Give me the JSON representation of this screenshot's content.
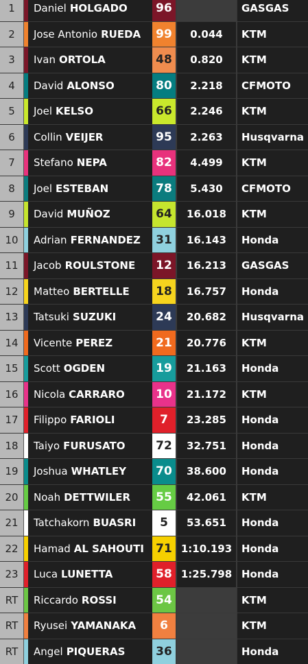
{
  "table": {
    "rows": [
      {
        "pos": "1",
        "first": "Daniel",
        "last": "HOLGADO",
        "number": "96",
        "gap": null,
        "team": "GASGAS",
        "color": "#7b1628",
        "strip": "#7b1628"
      },
      {
        "pos": "2",
        "first": "Jose Antonio",
        "last": "RUEDA",
        "number": "99",
        "gap": "0.044",
        "team": "KTM",
        "color": "#f0822e",
        "strip": "#f0822e"
      },
      {
        "pos": "3",
        "first": "Ivan",
        "last": "ORTOLA",
        "number": "48",
        "gap": "0.820",
        "team": "KTM",
        "color": "#ef8c4e",
        "strip": "#7b1628"
      },
      {
        "pos": "4",
        "first": "David",
        "last": "ALONSO",
        "number": "80",
        "gap": "2.218",
        "team": "CFMOTO",
        "color": "#057d80",
        "strip": "#057d80"
      },
      {
        "pos": "5",
        "first": "Joel",
        "last": "KELSO",
        "number": "66",
        "gap": "2.246",
        "team": "KTM",
        "color": "#c9e82c",
        "strip": "#c9e82c"
      },
      {
        "pos": "6",
        "first": "Collin",
        "last": "VEIJER",
        "number": "95",
        "gap": "2.263",
        "team": "Husqvarna",
        "color": "#2d3a56",
        "strip": "#2d3a56"
      },
      {
        "pos": "7",
        "first": "Stefano",
        "last": "NEPA",
        "number": "82",
        "gap": "4.499",
        "team": "KTM",
        "color": "#e8327c",
        "strip": "#e8327c"
      },
      {
        "pos": "8",
        "first": "Joel",
        "last": "ESTEBAN",
        "number": "78",
        "gap": "5.430",
        "team": "CFMOTO",
        "color": "#0b7c7e",
        "strip": "#0b7c7e"
      },
      {
        "pos": "9",
        "first": "David",
        "last": "MUÑOZ",
        "number": "64",
        "gap": "16.018",
        "team": "KTM",
        "color": "#c5e52e",
        "strip": "#c5e52e"
      },
      {
        "pos": "10",
        "first": "Adrian",
        "last": "FERNANDEZ",
        "number": "31",
        "gap": "16.143",
        "team": "Honda",
        "color": "#8fd0de",
        "strip": "#8fd0de"
      },
      {
        "pos": "11",
        "first": "Jacob",
        "last": "ROULSTONE",
        "number": "12",
        "gap": "16.213",
        "team": "GASGAS",
        "color": "#7b1628",
        "strip": "#7b1628"
      },
      {
        "pos": "12",
        "first": "Matteo",
        "last": "BERTELLE",
        "number": "18",
        "gap": "16.757",
        "team": "Honda",
        "color": "#f6d41e",
        "strip": "#f6d41e"
      },
      {
        "pos": "13",
        "first": "Tatsuki",
        "last": "SUZUKI",
        "number": "24",
        "gap": "20.682",
        "team": "Husqvarna",
        "color": "#2d3a56",
        "strip": "#2d3a56"
      },
      {
        "pos": "14",
        "first": "Vicente",
        "last": "PEREZ",
        "number": "21",
        "gap": "20.776",
        "team": "KTM",
        "color": "#f06a1e",
        "strip": "#f06a1e"
      },
      {
        "pos": "15",
        "first": "Scott",
        "last": "OGDEN",
        "number": "19",
        "gap": "21.163",
        "team": "Honda",
        "color": "#179c9c",
        "strip": "#179c9c"
      },
      {
        "pos": "16",
        "first": "Nicola",
        "last": "CARRARO",
        "number": "10",
        "gap": "21.172",
        "team": "KTM",
        "color": "#e8328a",
        "strip": "#e8328a"
      },
      {
        "pos": "17",
        "first": "Filippo",
        "last": "FARIOLI",
        "number": "7",
        "gap": "23.285",
        "team": "Honda",
        "color": "#e0202a",
        "strip": "#e0202a"
      },
      {
        "pos": "18",
        "first": "Taiyo",
        "last": "FURUSATO",
        "number": "72",
        "gap": "32.751",
        "team": "Honda",
        "color": "#ffffff",
        "strip": "#ffffff"
      },
      {
        "pos": "19",
        "first": "Joshua",
        "last": "WHATLEY",
        "number": "70",
        "gap": "38.600",
        "team": "Honda",
        "color": "#0a8c8c",
        "strip": "#0a8c8c"
      },
      {
        "pos": "20",
        "first": "Noah",
        "last": "DETTWILER",
        "number": "55",
        "gap": "42.061",
        "team": "KTM",
        "color": "#66cc44",
        "strip": "#66cc44"
      },
      {
        "pos": "21",
        "first": "Tatchakorn",
        "last": "BUASRI",
        "number": "5",
        "gap": "53.651",
        "team": "Honda",
        "color": "#ffffff",
        "strip": "#ffffff"
      },
      {
        "pos": "22",
        "first": "Hamad",
        "last": "AL SAHOUTI",
        "number": "71",
        "gap": "1:10.193",
        "team": "Honda",
        "color": "#f6d000",
        "strip": "#f6d000"
      },
      {
        "pos": "23",
        "first": "Luca",
        "last": "LUNETTA",
        "number": "58",
        "gap": "1:25.798",
        "team": "Honda",
        "color": "#e0202a",
        "strip": "#e0202a"
      },
      {
        "pos": "RT",
        "first": "Riccardo",
        "last": "ROSSI",
        "number": "54",
        "gap": null,
        "team": "KTM",
        "color": "#6cc644",
        "strip": "#6cc644"
      },
      {
        "pos": "RT",
        "first": "Ryusei",
        "last": "YAMANAKA",
        "number": "6",
        "gap": null,
        "team": "KTM",
        "color": "#f08040",
        "strip": "#f08040"
      },
      {
        "pos": "RT",
        "first": "Angel",
        "last": "PIQUERAS",
        "number": "36",
        "gap": null,
        "team": "Honda",
        "color": "#8fd0de",
        "strip": "#8fd0de"
      }
    ]
  }
}
